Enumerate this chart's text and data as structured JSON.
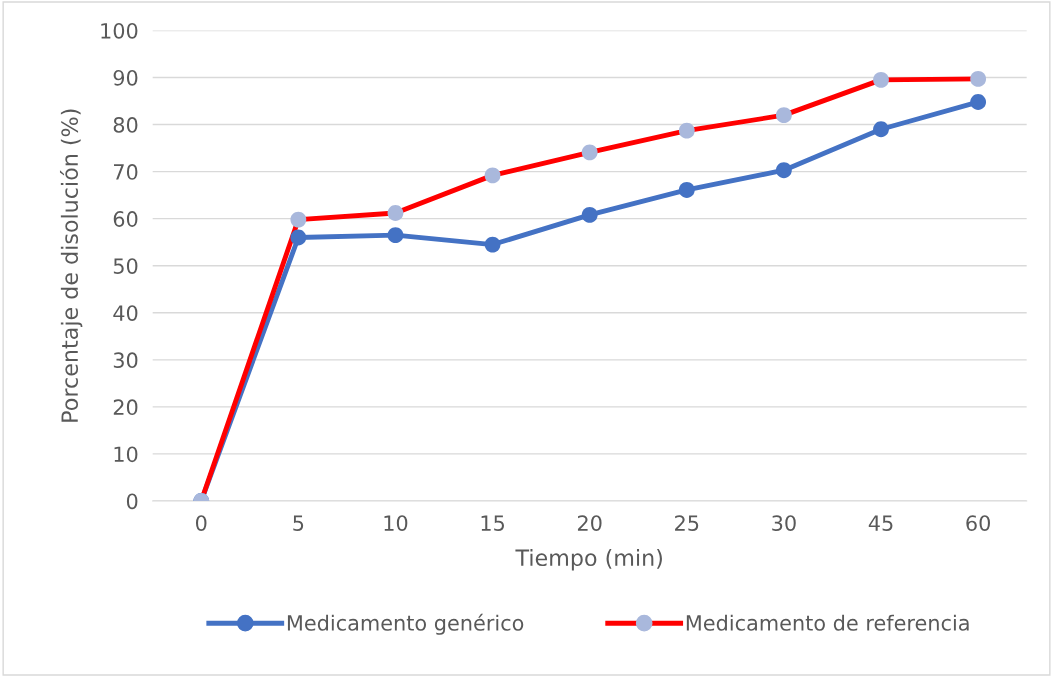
{
  "chart_data": {
    "type": "line",
    "xlabel": "Tiempo (min)",
    "ylabel": "Porcentaje de disolución (%)",
    "categories": [
      "0",
      "5",
      "10",
      "15",
      "20",
      "25",
      "30",
      "45",
      "60"
    ],
    "series": [
      {
        "name": "Medicamento genérico",
        "color": "#4472c4",
        "values": [
          0,
          56,
          56.5,
          54.5,
          60.8,
          66.1,
          70.3,
          79,
          84.8
        ]
      },
      {
        "name": "Medicamento de referencia",
        "color": "#ff0000",
        "colors": [
          "#a9b8dc",
          "#a9b8dc",
          "#a9b8dc",
          "#a9b8dc",
          "#a9b8dc",
          "#a9b8dc",
          "#a9b8dc",
          "#a9b8dc",
          "#a9b8dc"
        ],
        "values": [
          0,
          59.8,
          61.2,
          69.2,
          74.1,
          78.7,
          82,
          89.5,
          89.7
        ]
      }
    ],
    "ylim": [
      0,
      100
    ],
    "yticks": [
      0,
      10,
      20,
      30,
      40,
      50,
      60,
      70,
      80,
      90,
      100
    ],
    "grid": "y",
    "legend": "bottom",
    "marker": "circle",
    "line_style": "solid"
  }
}
